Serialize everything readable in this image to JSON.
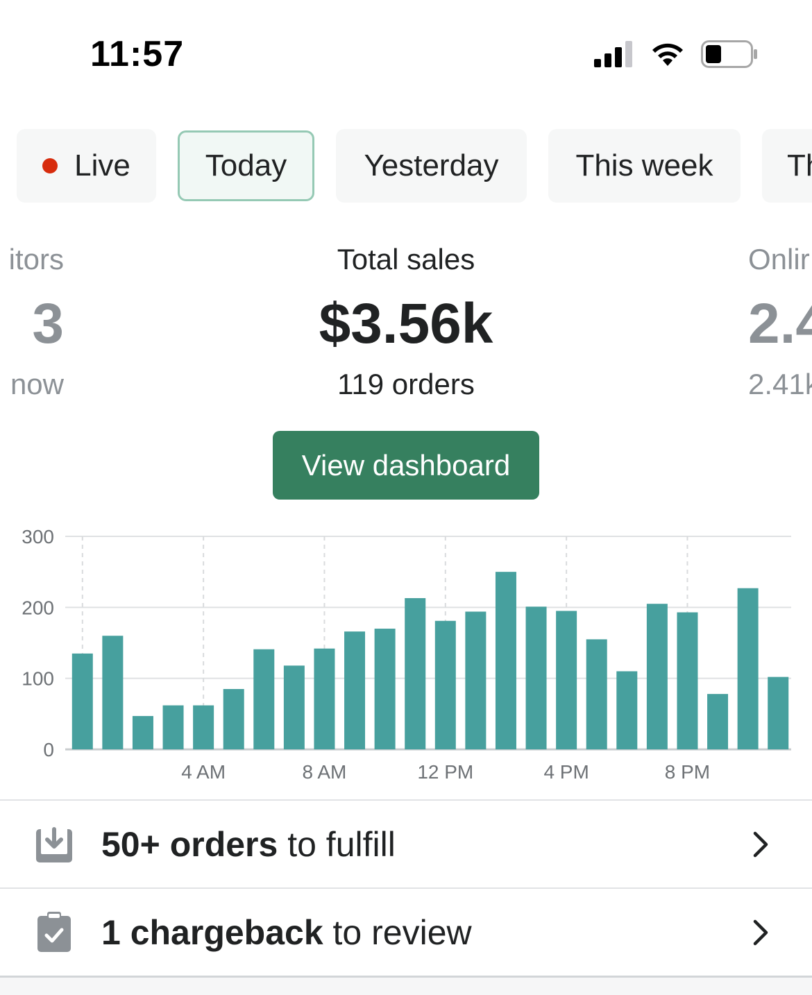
{
  "status_bar": {
    "time": "11:57"
  },
  "filters": {
    "live": "Live",
    "today": "Today",
    "yesterday": "Yesterday",
    "this_week": "This week",
    "next_partial": "Th"
  },
  "metrics": {
    "visitors": {
      "label": "itors",
      "value": "3",
      "sub": "now"
    },
    "total_sales": {
      "label": "Total sales",
      "value": "$3.56k",
      "sub": "119 orders"
    },
    "online": {
      "label": "Onlir",
      "value": "2.4",
      "sub": "2.41k"
    }
  },
  "view_dashboard_label": "View dashboard",
  "chart_data": {
    "type": "bar",
    "title": "",
    "xlabel": "",
    "ylabel": "",
    "ylim": [
      0,
      300
    ],
    "y_ticks": [
      0,
      100,
      200,
      300
    ],
    "x_tick_labels": [
      "4 AM",
      "8 AM",
      "12 PM",
      "4 PM",
      "8 PM"
    ],
    "values": [
      135,
      160,
      47,
      62,
      62,
      85,
      141,
      118,
      142,
      166,
      170,
      213,
      181,
      194,
      250,
      201,
      195,
      155,
      110,
      205,
      193,
      78,
      227,
      102
    ],
    "bar_color": "#47a09e",
    "grid": true
  },
  "tasks": [
    {
      "bold": "50+ orders",
      "rest": " to fulfill",
      "icon": "fulfill-icon"
    },
    {
      "bold": "1 chargeback",
      "rest": " to review",
      "icon": "clipboard-check-icon"
    }
  ],
  "colors": {
    "accent": "#36805f",
    "live_dot": "#d72c0d",
    "bar": "#47a09e"
  }
}
